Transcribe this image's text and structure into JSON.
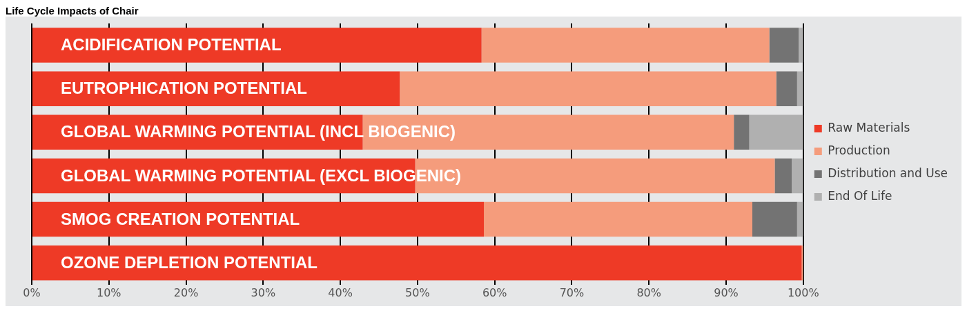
{
  "chart_data": {
    "type": "bar",
    "orientation": "horizontal",
    "stacked": true,
    "title": "Life Cycle Impacts of Chair",
    "categories": [
      "ACIDIFICATION POTENTIAL",
      "EUTROPHICATION POTENTIAL",
      "GLOBAL WARMING POTENTIAL (INCL BIOGENIC)",
      "GLOBAL WARMING POTENTIAL (EXCL BIOGENIC)",
      "SMOG CREATION POTENTIAL",
      "OZONE DEPLETION POTENTIAL"
    ],
    "series": [
      {
        "name": "Raw Materials",
        "color": "#ee3a26",
        "values": [
          58.3,
          47.7,
          42.9,
          49.7,
          58.6,
          99.8
        ]
      },
      {
        "name": "Production",
        "color": "#f59c7c",
        "values": [
          37.3,
          48.8,
          48.1,
          46.6,
          34.8,
          0.2
        ]
      },
      {
        "name": "Distribution and Use",
        "color": "#737373",
        "values": [
          3.8,
          2.7,
          2.0,
          2.2,
          5.8,
          0
        ]
      },
      {
        "name": "End Of Life",
        "color": "#b0b0b0",
        "values": [
          0.6,
          0.8,
          7.0,
          1.5,
          0.8,
          0
        ]
      }
    ],
    "xlim": [
      0,
      100
    ],
    "xticks": [
      {
        "value": 0,
        "label": "0%"
      },
      {
        "value": 10,
        "label": "10%"
      },
      {
        "value": 20,
        "label": "20%"
      },
      {
        "value": 30,
        "label": "30%"
      },
      {
        "value": 40,
        "label": "40%"
      },
      {
        "value": 50,
        "label": "50%"
      },
      {
        "value": 60,
        "label": "60%"
      },
      {
        "value": 70,
        "label": "70%"
      },
      {
        "value": 80,
        "label": "80%"
      },
      {
        "value": 90,
        "label": "90%"
      },
      {
        "value": 100,
        "label": "100%"
      }
    ],
    "grid": "x",
    "legend": "right"
  }
}
